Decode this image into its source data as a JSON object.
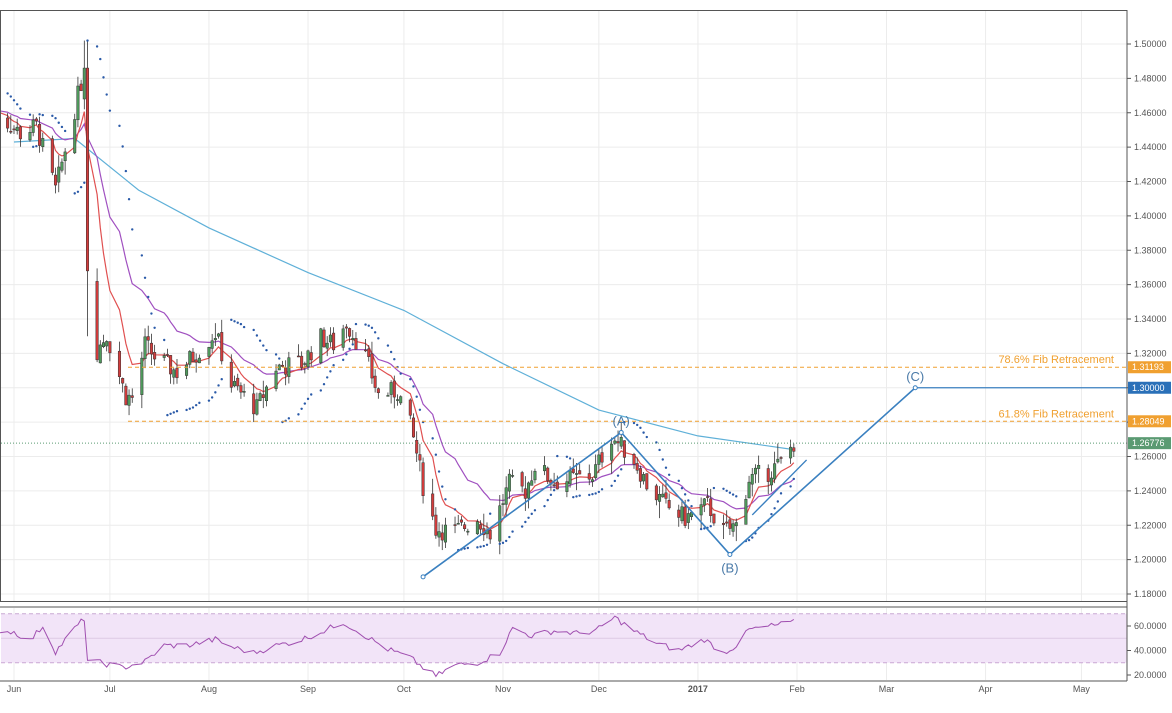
{
  "chart_data": {
    "type": "candlestick",
    "instrument_hint": "",
    "price_axis": {
      "ylim": [
        1.17,
        1.515
      ],
      "ticks": [
        "1.50000",
        "1.48000",
        "1.46000",
        "1.44000",
        "1.42000",
        "1.40000",
        "1.38000",
        "1.36000",
        "1.34000",
        "1.32000",
        "1.30000",
        "1.28000",
        "1.26000",
        "1.24000",
        "1.22000",
        "1.20000",
        "1.18000"
      ],
      "scale": "linear",
      "grid": true
    },
    "time_axis": {
      "labels": [
        {
          "label": "Jun",
          "date": "2016-06-01"
        },
        {
          "label": "Jul",
          "date": "2016-07-01"
        },
        {
          "label": "Aug",
          "date": "2016-08-01"
        },
        {
          "label": "Sep",
          "date": "2016-09-01"
        },
        {
          "label": "Oct",
          "date": "2016-10-01"
        },
        {
          "label": "Nov",
          "date": "2016-11-01"
        },
        {
          "label": "Dec",
          "date": "2016-12-01"
        },
        {
          "label": "2017",
          "date": "2017-01-01",
          "bold": true
        },
        {
          "label": "Feb",
          "date": "2017-02-01"
        },
        {
          "label": "Mar",
          "date": "2017-03-01"
        },
        {
          "label": "Apr",
          "date": "2017-04-01"
        },
        {
          "label": "May",
          "date": "2017-05-01"
        }
      ]
    },
    "close_path": [
      [
        "2016-05-25",
        1.462
      ],
      [
        "2016-06-03",
        1.448
      ],
      [
        "2016-06-08",
        1.452
      ],
      [
        "2016-06-14",
        1.415
      ],
      [
        "2016-06-20",
        1.462
      ],
      [
        "2016-06-23",
        1.485
      ],
      [
        "2016-06-24",
        1.365
      ],
      [
        "2016-06-27",
        1.322
      ],
      [
        "2016-06-30",
        1.331
      ],
      [
        "2016-07-06",
        1.295
      ],
      [
        "2016-07-08",
        1.294
      ],
      [
        "2016-07-12",
        1.325
      ],
      [
        "2016-07-15",
        1.318
      ],
      [
        "2016-07-22",
        1.309
      ],
      [
        "2016-07-29",
        1.322
      ],
      [
        "2016-08-03",
        1.332
      ],
      [
        "2016-08-08",
        1.302
      ],
      [
        "2016-08-16",
        1.288
      ],
      [
        "2016-08-22",
        1.312
      ],
      [
        "2016-08-30",
        1.314
      ],
      [
        "2016-09-05",
        1.329
      ],
      [
        "2016-09-09",
        1.325
      ],
      [
        "2016-09-13",
        1.338
      ],
      [
        "2016-09-19",
        1.318
      ],
      [
        "2016-09-23",
        1.296
      ],
      [
        "2016-09-29",
        1.298
      ],
      [
        "2016-10-03",
        1.278
      ],
      [
        "2016-10-05",
        1.262
      ],
      [
        "2016-10-07",
        1.243
      ],
      [
        "2016-10-11",
        1.218
      ],
      [
        "2016-10-17",
        1.216
      ],
      [
        "2016-10-24",
        1.224
      ],
      [
        "2016-10-28",
        1.215
      ],
      [
        "2016-11-03",
        1.244
      ],
      [
        "2016-11-08",
        1.24
      ],
      [
        "2016-11-11",
        1.255
      ],
      [
        "2016-11-17",
        1.245
      ],
      [
        "2016-11-23",
        1.247
      ],
      [
        "2016-11-29",
        1.249
      ],
      [
        "2016-12-05",
        1.272
      ],
      [
        "2016-12-07",
        1.268
      ],
      [
        "2016-12-12",
        1.258
      ],
      [
        "2016-12-16",
        1.244
      ],
      [
        "2016-12-22",
        1.231
      ],
      [
        "2016-12-28",
        1.224
      ],
      [
        "2017-01-04",
        1.232
      ],
      [
        "2017-01-09",
        1.216
      ],
      [
        "2017-01-13",
        1.22
      ],
      [
        "2017-01-17",
        1.247
      ],
      [
        "2017-01-23",
        1.251
      ],
      [
        "2017-01-27",
        1.256
      ],
      [
        "2017-01-31",
        1.268
      ]
    ],
    "ma_200": [
      [
        "2016-06-01",
        1.443
      ],
      [
        "2016-06-20",
        1.445
      ],
      [
        "2016-07-10",
        1.415
      ],
      [
        "2016-08-01",
        1.393
      ],
      [
        "2016-09-01",
        1.367
      ],
      [
        "2016-10-01",
        1.345
      ],
      [
        "2016-11-01",
        1.314
      ],
      [
        "2016-12-01",
        1.287
      ],
      [
        "2017-01-01",
        1.272
      ],
      [
        "2017-01-31",
        1.264
      ]
    ],
    "ma_fast": {
      "color": "#e05050"
    },
    "ma_slow": {
      "color": "#a050c0"
    },
    "parabolic_sar": {
      "color": "#2a5aa8"
    },
    "fib_levels": [
      {
        "label": "78.6% Fib Retracement",
        "price": 1.31193,
        "value_label": "1.31193",
        "color": "#f0a030"
      },
      {
        "label": "61.8% Fib Retracement",
        "price": 1.28049,
        "value_label": "1.28049",
        "color": "#f0a030"
      }
    ],
    "last_price": {
      "price": 1.26776,
      "value_label": "1.26776",
      "color": "#5a9a72"
    },
    "target_line": {
      "price": 1.3,
      "value_label": "1.30000",
      "color": "#3a80c0"
    },
    "wave": {
      "color": "#3a80c0",
      "points": [
        {
          "date": "2016-10-07",
          "price": 1.19,
          "label": ""
        },
        {
          "date": "2016-12-08",
          "price": 1.274,
          "label": "(A)"
        },
        {
          "date": "2017-01-11",
          "price": 1.203,
          "label": "(B)"
        },
        {
          "date": "2017-03-10",
          "price": 1.3,
          "label": "(C)"
        }
      ],
      "extra_segment": [
        {
          "date": "2017-01-18",
          "price": 1.226
        },
        {
          "date": "2017-02-04",
          "price": 1.258
        }
      ]
    },
    "rsi": {
      "ylim": [
        16,
        72
      ],
      "ticks": [
        "60.0000",
        "40.0000",
        "20.0000"
      ],
      "band": [
        30,
        70
      ],
      "band_color": "#f2e4f8",
      "line_color": "#a04fb0",
      "values": [
        [
          "2016-05-25",
          57
        ],
        [
          "2016-06-01",
          55
        ],
        [
          "2016-06-06",
          48
        ],
        [
          "2016-06-10",
          60
        ],
        [
          "2016-06-14",
          39
        ],
        [
          "2016-06-20",
          58
        ],
        [
          "2016-06-23",
          66
        ],
        [
          "2016-06-24",
          32
        ],
        [
          "2016-06-28",
          30
        ],
        [
          "2016-07-05",
          26
        ],
        [
          "2016-07-12",
          31
        ],
        [
          "2016-07-18",
          44
        ],
        [
          "2016-07-25",
          44
        ],
        [
          "2016-08-03",
          49
        ],
        [
          "2016-08-08",
          43
        ],
        [
          "2016-08-15",
          38
        ],
        [
          "2016-08-22",
          44
        ],
        [
          "2016-08-29",
          48
        ],
        [
          "2016-09-05",
          55
        ],
        [
          "2016-09-12",
          63
        ],
        [
          "2016-09-19",
          52
        ],
        [
          "2016-09-26",
          41
        ],
        [
          "2016-10-03",
          34
        ],
        [
          "2016-10-07",
          26
        ],
        [
          "2016-10-11",
          19
        ],
        [
          "2016-10-17",
          28
        ],
        [
          "2016-10-24",
          30
        ],
        [
          "2016-10-31",
          38
        ],
        [
          "2016-11-04",
          58
        ],
        [
          "2016-11-10",
          52
        ],
        [
          "2016-11-17",
          56
        ],
        [
          "2016-11-24",
          54
        ],
        [
          "2016-11-30",
          56
        ],
        [
          "2016-12-06",
          67
        ],
        [
          "2016-12-12",
          56
        ],
        [
          "2016-12-19",
          46
        ],
        [
          "2016-12-26",
          40
        ],
        [
          "2017-01-03",
          49
        ],
        [
          "2017-01-09",
          38
        ],
        [
          "2017-01-13",
          44
        ],
        [
          "2017-01-17",
          57
        ],
        [
          "2017-01-24",
          60
        ],
        [
          "2017-01-31",
          63
        ]
      ]
    }
  }
}
